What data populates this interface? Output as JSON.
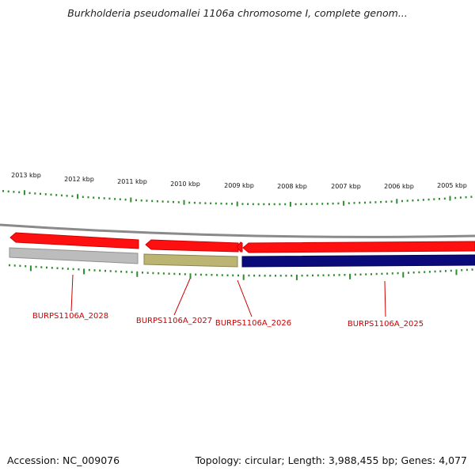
{
  "header": {
    "title": "Burkholderia pseudomallei 1106a chromosome I, complete genom..."
  },
  "footer": {
    "accession": "Accession: NC_009076",
    "topology": "Topology: circular; Length: 3,988,455 bp; Genes: 4,077"
  },
  "scale": {
    "unit": "kbp",
    "ticks": [
      "2013 kbp",
      "2012 kbp",
      "2011 kbp",
      "2010 kbp",
      "2009 kbp",
      "2008 kbp",
      "2007 kbp",
      "2006 kbp",
      "2005 kbp"
    ]
  },
  "colors": {
    "tick": "#2e8b2e",
    "backbone": "#8a8a8a",
    "forward_gene": "#ff0000",
    "label": "#cc0000",
    "burps2028": "#bcbcbc",
    "burps2027": "#bcb472",
    "burps2025": "#0a0a7a"
  },
  "genes": [
    {
      "id": "BURPS1106A_2028",
      "label": "BURPS1106A_2028"
    },
    {
      "id": "BURPS1106A_2027",
      "label": "BURPS1106A_2027"
    },
    {
      "id": "BURPS1106A_2026",
      "label": "BURPS1106A_2026"
    },
    {
      "id": "BURPS1106A_2025",
      "label": "BURPS1106A_2025"
    }
  ]
}
